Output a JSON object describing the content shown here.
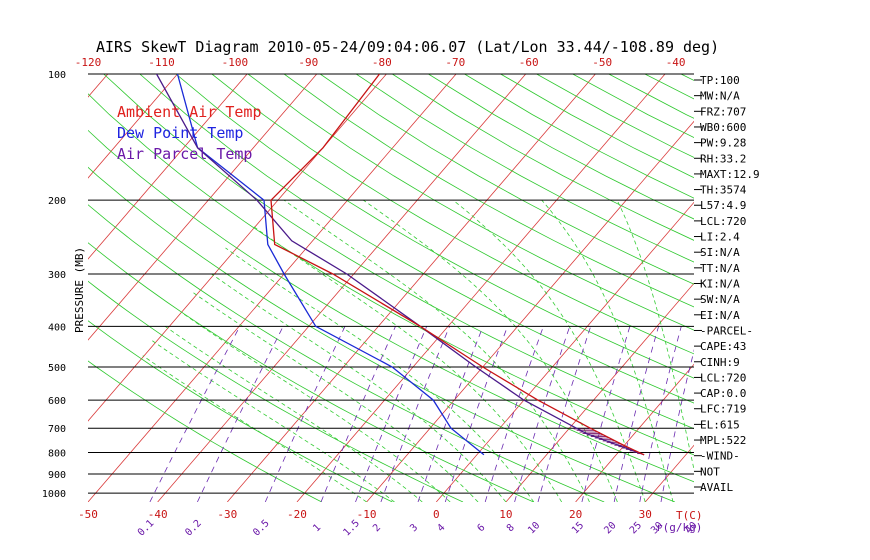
{
  "chart_data": {
    "type": "skew-t",
    "title": "AIRS SkewT Diagram 2010-05-24/09:04:06.07 (Lat/Lon 33.44/-108.89 deg)",
    "ylabel": "PRESSURE (MB)",
    "xlabel": "T(C)",
    "mixing_ratio_unit": "r(g/kg)",
    "pressure_ticks": [
      "100",
      "200",
      "300",
      "400",
      "500",
      "600",
      "700",
      "800",
      "900",
      "1000"
    ],
    "pressure_values": [
      100,
      200,
      300,
      400,
      500,
      600,
      700,
      800,
      900,
      1000
    ],
    "pressure_range": [
      100,
      1050
    ],
    "bottom_temp_ticks": [
      "-50",
      "-40",
      "-30",
      "-20",
      "-10",
      "0",
      "10",
      "20",
      "30"
    ],
    "bottom_temp_values": [
      -50,
      -40,
      -30,
      -20,
      -10,
      0,
      10,
      20,
      30
    ],
    "bottom_temp_range": [
      -50,
      37
    ],
    "top_temp_ticks": [
      "-120",
      "-110",
      "-100",
      "-90",
      "-80",
      "-70",
      "-60",
      "-50",
      "-40"
    ],
    "top_temp_values": [
      -120,
      -110,
      -100,
      -90,
      -80,
      -70,
      -60,
      -50,
      -40
    ],
    "top_temp_range": [
      -120,
      -37.5
    ],
    "mixing_ratio_ticks": [
      "0.1",
      "0.2",
      "0.5",
      "1",
      "1.5",
      "2",
      "3",
      "4",
      "6",
      "8",
      "10",
      "15",
      "20",
      "25",
      "30",
      "40"
    ],
    "mixing_ratio_values": [
      0.1,
      0.2,
      0.5,
      1,
      1.5,
      2,
      3,
      4,
      6,
      8,
      10,
      15,
      20,
      25,
      30,
      40
    ],
    "legend": [
      {
        "label": "Ambient Air Temp",
        "color": "#e0211e"
      },
      {
        "label": "Dew Point Temp",
        "color": "#1f24e0"
      },
      {
        "label": "Air Parcel Temp",
        "color": "#6a18a8"
      }
    ],
    "series": [
      {
        "name": "Ambient Air Temp",
        "color": "#c81414",
        "pressure": [
          810,
          770,
          700,
          600,
          500,
          400,
          300,
          255,
          200,
          150,
          100
        ],
        "temperature": [
          24,
          20,
          13,
          2,
          -10,
          -24,
          -43,
          -55,
          -61,
          -60,
          -61
        ]
      },
      {
        "name": "Dew Point Temp",
        "color": "#1a2ad6",
        "pressure": [
          810,
          700,
          600,
          500,
          400,
          300,
          255,
          200,
          150,
          100
        ],
        "temperature": [
          1,
          -7,
          -13,
          -23,
          -39,
          -50,
          -56,
          -62,
          -78,
          -90
        ]
      },
      {
        "name": "Air Parcel Temp",
        "color": "#4a1a8a",
        "pressure": [
          810,
          720,
          600,
          500,
          400,
          300,
          250,
          200,
          150,
          100
        ],
        "temperature": [
          24,
          13,
          0,
          -11,
          -24,
          -41,
          -53,
          -63,
          -78,
          -93
        ]
      }
    ],
    "side_panel": [
      "TP:100",
      "MW:N/A",
      "FRZ:707",
      "WB0:600",
      "PW:9.28",
      "RH:33.2",
      "MAXT:12.9",
      "TH:3574",
      "L57:4.9",
      "LCL:720",
      "LI:2.4",
      "SI:N/A",
      "TT:N/A",
      "KI:N/A",
      "SW:N/A",
      "EI:N/A",
      "-PARCEL-",
      "CAPE:43",
      "CINH:9",
      "LCL:720",
      "CAP:0.0",
      "LFC:719",
      "EL:615",
      "MPL:522",
      "-WIND-",
      "NOT",
      "AVAIL"
    ]
  }
}
